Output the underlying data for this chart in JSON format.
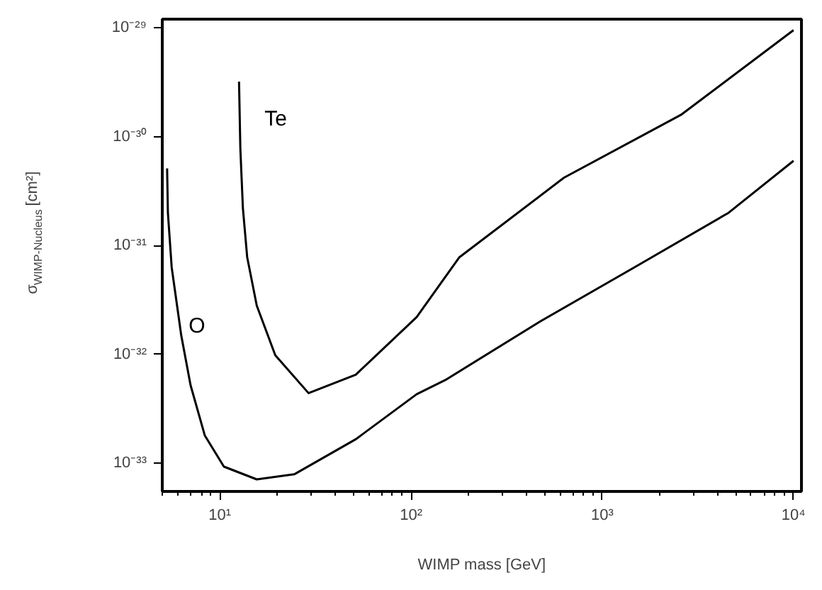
{
  "chart_data": {
    "type": "line",
    "xlabel": "WIMP mass [GeV]",
    "ylabel": "σ$_{WIMP-Nucleus}$ [cm²]",
    "log": "xy",
    "grid": false,
    "legend": false,
    "marker": "none",
    "line_style": "solid",
    "xlim": [
      5,
      11000
    ],
    "ylim": [
      5.5e-34,
      1.2e-29
    ],
    "xticks": [
      {
        "value": 5,
        "label": null
      },
      {
        "value": 6,
        "label": null
      },
      {
        "value": 7,
        "label": null
      },
      {
        "value": 8,
        "label": null
      },
      {
        "value": 9,
        "label": null
      },
      {
        "value": 10,
        "label": "10¹"
      },
      {
        "value": 20,
        "label": null
      },
      {
        "value": 30,
        "label": null
      },
      {
        "value": 40,
        "label": null
      },
      {
        "value": 50,
        "label": null
      },
      {
        "value": 60,
        "label": null
      },
      {
        "value": 70,
        "label": null
      },
      {
        "value": 80,
        "label": null
      },
      {
        "value": 90,
        "label": null
      },
      {
        "value": 100,
        "label": "10²"
      },
      {
        "value": 200,
        "label": null
      },
      {
        "value": 300,
        "label": null
      },
      {
        "value": 400,
        "label": null
      },
      {
        "value": 500,
        "label": null
      },
      {
        "value": 600,
        "label": null
      },
      {
        "value": 700,
        "label": null
      },
      {
        "value": 800,
        "label": null
      },
      {
        "value": 900,
        "label": null
      },
      {
        "value": 1000,
        "label": "10³"
      },
      {
        "value": 2000,
        "label": null
      },
      {
        "value": 3000,
        "label": null
      },
      {
        "value": 4000,
        "label": null
      },
      {
        "value": 5000,
        "label": null
      },
      {
        "value": 6000,
        "label": null
      },
      {
        "value": 7000,
        "label": null
      },
      {
        "value": 8000,
        "label": null
      },
      {
        "value": 9000,
        "label": null
      },
      {
        "value": 10000,
        "label": "10⁴"
      }
    ],
    "yticks": [
      {
        "value": 1e-33,
        "label": "10⁻³³"
      },
      {
        "value": 1e-32,
        "label": "10⁻³²"
      },
      {
        "value": 1e-31,
        "label": "10⁻³¹"
      },
      {
        "value": 1e-30,
        "label": "10⁻³⁰"
      },
      {
        "value": 1e-29,
        "label": "10⁻²⁹"
      }
    ],
    "series": [
      {
        "name": "O",
        "color": "#000000",
        "x": [
          5.3,
          5.35,
          5.6,
          6.28,
          7.03,
          8.34,
          10.5,
          15.6,
          24.5,
          51.4,
          107,
          151,
          472,
          1472,
          4581,
          10000
        ],
        "values": [
          5.1e-31,
          2e-31,
          6.3e-32,
          1.5e-32,
          5.2e-33,
          1.8e-33,
          9.3e-34,
          7.1e-34,
          7.9e-34,
          1.66e-33,
          4.3e-33,
          5.8e-33,
          2e-32,
          6.3e-32,
          2e-31,
          6e-31
        ]
      },
      {
        "name": "Te",
        "color": "#000000",
        "x": [
          12.6,
          12.8,
          13.2,
          13.9,
          15.6,
          19.5,
          29.1,
          51.4,
          107,
          179,
          631,
          2600,
          10000
        ],
        "values": [
          3.2e-30,
          7.8e-31,
          2.2e-31,
          7.8e-32,
          2.8e-32,
          9.8e-33,
          4.4e-33,
          6.5e-33,
          2.2e-32,
          7.8e-32,
          4.2e-31,
          1.6e-30,
          9.5e-30
        ]
      }
    ]
  }
}
